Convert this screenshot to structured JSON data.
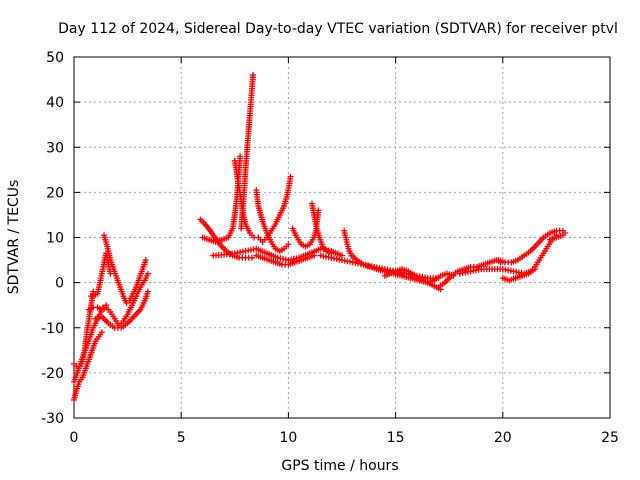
{
  "chart_data": {
    "type": "scatter",
    "title": "Day 112 of 2024, Sidereal Day-to-day VTEC variation (SDTVAR) for receiver ptvl",
    "xlabel": "GPS time / hours",
    "ylabel": "SDTVAR / TECUs",
    "xlim": [
      0,
      25
    ],
    "ylim": [
      -30,
      50
    ],
    "xticks": [
      0,
      5,
      10,
      15,
      20,
      25
    ],
    "yticks": [
      -30,
      -20,
      -10,
      0,
      10,
      20,
      30,
      40,
      50
    ],
    "grid": true,
    "marker": "+",
    "color": "#ff0000",
    "series": [
      {
        "name": "arc1",
        "points": [
          [
            0.0,
            -26
          ],
          [
            0.1,
            -24
          ],
          [
            0.25,
            -22
          ],
          [
            0.4,
            -21
          ],
          [
            0.55,
            -19
          ],
          [
            0.7,
            -17
          ],
          [
            0.85,
            -15
          ],
          [
            1.0,
            -13
          ],
          [
            1.15,
            -12
          ],
          [
            1.3,
            -11
          ]
        ]
      },
      {
        "name": "arc2",
        "points": [
          [
            0.0,
            -22
          ],
          [
            0.15,
            -20
          ],
          [
            0.3,
            -18
          ],
          [
            0.45,
            -16
          ],
          [
            0.6,
            -14
          ],
          [
            0.75,
            -12
          ],
          [
            0.9,
            -10
          ],
          [
            1.05,
            -8.5
          ],
          [
            1.2,
            -7
          ],
          [
            1.35,
            -5.5
          ],
          [
            1.5,
            -5
          ]
        ]
      },
      {
        "name": "arc3",
        "points": [
          [
            0.0,
            -18
          ],
          [
            0.2,
            -19
          ],
          [
            0.35,
            -18
          ],
          [
            0.5,
            -15
          ],
          [
            0.6,
            -11
          ],
          [
            0.7,
            -8
          ],
          [
            0.8,
            -5
          ],
          [
            0.9,
            -2
          ]
        ]
      },
      {
        "name": "arc4",
        "points": [
          [
            0.7,
            -6
          ],
          [
            0.9,
            -5.5
          ],
          [
            1.1,
            -5.5
          ],
          [
            1.3,
            -6
          ],
          [
            1.5,
            -5.5
          ],
          [
            1.7,
            -6.5
          ],
          [
            1.9,
            -8
          ],
          [
            2.1,
            -9.5
          ],
          [
            2.3,
            -8.5
          ],
          [
            2.5,
            -7
          ],
          [
            2.7,
            -5
          ],
          [
            2.9,
            -3
          ],
          [
            3.1,
            -1
          ],
          [
            3.3,
            0.5
          ],
          [
            3.45,
            2
          ]
        ]
      },
      {
        "name": "arc5",
        "points": [
          [
            1.4,
            10.5
          ],
          [
            1.55,
            8
          ],
          [
            1.7,
            5
          ],
          [
            1.85,
            3
          ],
          [
            2.0,
            1
          ],
          [
            2.15,
            -1
          ],
          [
            2.3,
            -3
          ],
          [
            2.45,
            -4.5
          ],
          [
            2.6,
            -4
          ],
          [
            2.75,
            -2.5
          ],
          [
            2.9,
            -1
          ],
          [
            3.05,
            1
          ],
          [
            3.2,
            3
          ],
          [
            3.35,
            5
          ]
        ]
      },
      {
        "name": "arc6",
        "points": [
          [
            1.0,
            -8
          ],
          [
            1.3,
            -7.5
          ],
          [
            1.6,
            -9
          ],
          [
            1.9,
            -10
          ],
          [
            2.2,
            -10
          ],
          [
            2.5,
            -9
          ],
          [
            2.8,
            -7.5
          ],
          [
            3.1,
            -6
          ],
          [
            3.3,
            -4
          ],
          [
            3.45,
            -2
          ]
        ]
      },
      {
        "name": "arc7",
        "points": [
          [
            0.8,
            -3
          ],
          [
            1.1,
            -2.5
          ],
          [
            1.3,
            2
          ],
          [
            1.5,
            6.5
          ],
          [
            1.7,
            2
          ]
        ]
      },
      {
        "name": "arc8",
        "points": [
          [
            5.9,
            14
          ],
          [
            6.2,
            12.5
          ],
          [
            6.5,
            10.5
          ],
          [
            6.8,
            8.5
          ],
          [
            7.1,
            7
          ],
          [
            7.4,
            6
          ],
          [
            7.7,
            5.5
          ],
          [
            8.0,
            5.5
          ],
          [
            8.3,
            5.5
          ]
        ]
      },
      {
        "name": "arc9",
        "points": [
          [
            6.0,
            10
          ],
          [
            6.3,
            9.5
          ],
          [
            6.6,
            9
          ],
          [
            6.9,
            9.5
          ],
          [
            7.2,
            10
          ],
          [
            7.4,
            12
          ],
          [
            7.5,
            15
          ],
          [
            7.6,
            19
          ],
          [
            7.65,
            22
          ],
          [
            7.7,
            25
          ],
          [
            7.75,
            28
          ]
        ]
      },
      {
        "name": "arc10",
        "points": [
          [
            7.8,
            12
          ],
          [
            7.85,
            15
          ],
          [
            7.9,
            18
          ],
          [
            7.95,
            21
          ],
          [
            8.0,
            25
          ],
          [
            8.05,
            28
          ],
          [
            8.1,
            31
          ],
          [
            8.15,
            34
          ],
          [
            8.2,
            37
          ],
          [
            8.25,
            40
          ],
          [
            8.3,
            43
          ],
          [
            8.35,
            46
          ]
        ]
      },
      {
        "name": "arc11",
        "points": [
          [
            7.5,
            27
          ],
          [
            7.6,
            24
          ],
          [
            7.7,
            21
          ],
          [
            7.8,
            18
          ],
          [
            7.9,
            15
          ],
          [
            8.0,
            13
          ],
          [
            8.2,
            11
          ],
          [
            8.4,
            10
          ]
        ]
      },
      {
        "name": "arc12",
        "points": [
          [
            8.5,
            20.5
          ],
          [
            8.6,
            17
          ],
          [
            8.8,
            13.5
          ],
          [
            9.0,
            11
          ],
          [
            9.2,
            9
          ],
          [
            9.4,
            7.5
          ],
          [
            9.6,
            7
          ],
          [
            9.8,
            7.5
          ],
          [
            10.0,
            8.5
          ]
        ]
      },
      {
        "name": "arc13",
        "points": [
          [
            8.6,
            10
          ],
          [
            8.8,
            9
          ],
          [
            9.0,
            10
          ],
          [
            9.2,
            11.5
          ],
          [
            9.4,
            13
          ],
          [
            9.6,
            15
          ],
          [
            9.8,
            17
          ],
          [
            9.95,
            19.5
          ],
          [
            10.05,
            22
          ],
          [
            10.1,
            23.5
          ]
        ]
      },
      {
        "name": "arc14",
        "points": [
          [
            8.5,
            6
          ],
          [
            8.8,
            5.5
          ],
          [
            9.1,
            5
          ],
          [
            9.4,
            4.5
          ],
          [
            9.7,
            4
          ],
          [
            10.0,
            4
          ],
          [
            10.3,
            4.5
          ],
          [
            10.6,
            5
          ],
          [
            10.9,
            5.5
          ],
          [
            11.2,
            6
          ]
        ]
      },
      {
        "name": "arc15",
        "points": [
          [
            6.5,
            6
          ],
          [
            7.0,
            6.2
          ],
          [
            7.5,
            6.5
          ],
          [
            8.0,
            7
          ],
          [
            8.5,
            7.5
          ],
          [
            9.0,
            6.5
          ],
          [
            9.5,
            5.5
          ],
          [
            10.0,
            5
          ],
          [
            10.5,
            5.5
          ],
          [
            11.0,
            6.5
          ],
          [
            11.5,
            7.5
          ],
          [
            12.0,
            7
          ],
          [
            12.5,
            6
          ]
        ]
      },
      {
        "name": "arc16",
        "points": [
          [
            10.2,
            12
          ],
          [
            10.4,
            10
          ],
          [
            10.6,
            8.5
          ],
          [
            10.8,
            8
          ],
          [
            11.0,
            8.5
          ],
          [
            11.2,
            10
          ],
          [
            11.3,
            12
          ],
          [
            11.35,
            14
          ],
          [
            11.4,
            16
          ]
        ]
      },
      {
        "name": "arc17",
        "points": [
          [
            11.1,
            17.5
          ],
          [
            11.2,
            15
          ],
          [
            11.3,
            12.5
          ],
          [
            11.45,
            10
          ],
          [
            11.6,
            8
          ],
          [
            11.8,
            7
          ],
          [
            12.0,
            6.5
          ]
        ]
      },
      {
        "name": "arc18",
        "points": [
          [
            12.6,
            11.5
          ],
          [
            12.7,
            9.5
          ],
          [
            12.8,
            7.5
          ],
          [
            12.95,
            6
          ],
          [
            13.2,
            5
          ],
          [
            13.5,
            4
          ],
          [
            13.8,
            3.5
          ],
          [
            14.1,
            3
          ],
          [
            14.5,
            2.5
          ],
          [
            14.9,
            2
          ],
          [
            15.3,
            1.5
          ],
          [
            15.7,
            1
          ],
          [
            16.1,
            0.5
          ],
          [
            16.5,
            0
          ],
          [
            16.9,
            -1
          ],
          [
            17.1,
            -1.5
          ]
        ]
      },
      {
        "name": "arc19",
        "points": [
          [
            11.5,
            6
          ],
          [
            12.0,
            5.5
          ],
          [
            12.5,
            5
          ],
          [
            13.0,
            4.5
          ],
          [
            13.5,
            4
          ],
          [
            14.0,
            3.5
          ],
          [
            14.5,
            3
          ],
          [
            15.0,
            2.5
          ],
          [
            15.5,
            2
          ],
          [
            16.0,
            1.5
          ],
          [
            16.5,
            1
          ],
          [
            17.0,
            1
          ]
        ]
      },
      {
        "name": "arc20",
        "points": [
          [
            14.5,
            1.5
          ],
          [
            15.0,
            2.5
          ],
          [
            15.3,
            3
          ],
          [
            15.6,
            2.5
          ],
          [
            15.9,
            1.5
          ],
          [
            16.2,
            0.5
          ],
          [
            16.5,
            0
          ],
          [
            16.8,
            0.5
          ],
          [
            17.1,
            1.5
          ],
          [
            17.4,
            2
          ],
          [
            17.7,
            1.5
          ]
        ]
      },
      {
        "name": "arc21",
        "points": [
          [
            17.0,
            -1
          ],
          [
            17.3,
            0
          ],
          [
            17.6,
            1.5
          ],
          [
            17.9,
            2.5
          ],
          [
            18.2,
            3
          ],
          [
            18.5,
            3.5
          ],
          [
            18.8,
            3.5
          ],
          [
            19.1,
            4
          ],
          [
            19.4,
            4.5
          ],
          [
            19.7,
            5
          ],
          [
            19.9,
            4.5
          ]
        ]
      },
      {
        "name": "arc22",
        "points": [
          [
            18.0,
            2
          ],
          [
            18.5,
            2.5
          ],
          [
            19.0,
            3
          ],
          [
            19.5,
            3
          ],
          [
            20.0,
            3
          ],
          [
            20.5,
            2.5
          ],
          [
            21.0,
            2
          ],
          [
            21.3,
            2.5
          ],
          [
            21.5,
            3.5
          ],
          [
            21.7,
            5
          ],
          [
            21.9,
            6.5
          ],
          [
            22.1,
            8
          ],
          [
            22.3,
            9.5
          ],
          [
            22.5,
            10.5
          ]
        ]
      },
      {
        "name": "arc23",
        "points": [
          [
            19.8,
            5
          ],
          [
            20.1,
            4.5
          ],
          [
            20.4,
            4.5
          ],
          [
            20.7,
            5
          ],
          [
            21.0,
            6
          ],
          [
            21.3,
            7
          ],
          [
            21.6,
            8.5
          ],
          [
            21.9,
            10
          ],
          [
            22.2,
            11
          ],
          [
            22.5,
            11.5
          ],
          [
            22.8,
            11.5
          ]
        ]
      },
      {
        "name": "arc24",
        "points": [
          [
            20.0,
            1
          ],
          [
            20.3,
            0.5
          ],
          [
            20.6,
            1
          ],
          [
            20.9,
            1.5
          ],
          [
            21.2,
            2
          ],
          [
            21.5,
            3
          ]
        ]
      },
      {
        "name": "arc25",
        "points": [
          [
            22.2,
            9.5
          ],
          [
            22.5,
            10
          ],
          [
            22.8,
            10.5
          ],
          [
            22.9,
            11
          ]
        ]
      }
    ]
  }
}
